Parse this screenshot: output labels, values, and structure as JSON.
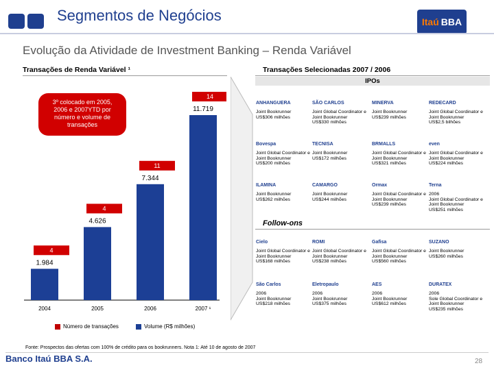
{
  "header": {
    "title": "Segmentos de Negócios",
    "logo_part1": "Itaú",
    "logo_part2": "BBA",
    "subtitle": "Evolução da Atividade de Investment Banking – Renda Variável"
  },
  "left": {
    "section_title": "Transações de Renda Variável ¹",
    "callout": "3º colocado em 2005, 2006 e 2007YTD por número e volume de transações"
  },
  "chart_data": {
    "type": "bar",
    "categories": [
      "2004",
      "2005",
      "2006",
      "2007 ¹"
    ],
    "series": [
      {
        "name": "Número de transações",
        "values": [
          4,
          4,
          11,
          14
        ]
      },
      {
        "name": "Volume (R$ milhões)",
        "values": [
          1984,
          4626,
          7344,
          11719
        ]
      }
    ],
    "volume_labels": [
      "1.984",
      "4.626",
      "7.344",
      "11.719"
    ],
    "count_labels": [
      "4",
      "4",
      "11",
      "14"
    ],
    "legend": [
      "Número de transações",
      "Volume (R$ milhões)"
    ],
    "ylim": [
      0,
      12500
    ]
  },
  "right": {
    "section_title": "Transações Selecionadas 2007 / 2006",
    "ipos_label": "IPOs",
    "followons_label": "Follow-ons",
    "ipos": [
      {
        "logo": "ANHANGUERA",
        "text": "Joint Bookrunner\nUS$306 milhões"
      },
      {
        "logo": "SÃO CARLOS",
        "text": "Joint Global Coordinator e Joint Bookrunner\nUS$330 milhões"
      },
      {
        "logo": "MINERVA",
        "text": "Joint Bookrunner\nUS$239 milhões"
      },
      {
        "logo": "REDECARD",
        "text": "Joint Global Coordinator e Joint Bookrunner\nUS$2,5 bilhões"
      },
      {
        "logo": "Bovespa",
        "text": "Joint Global Coordinator e Joint Bookrunner\nUS$200 milhões"
      },
      {
        "logo": "TECNISA",
        "text": "Joint Bookrunner\nUS$172 milhões"
      },
      {
        "logo": "BRMALLS",
        "text": "Joint Global Coordinator e Joint Bookrunner\nUS$321 milhões"
      },
      {
        "logo": "even",
        "text": "Joint Global Coordinator e Joint Bookrunner\nUS$224 milhões"
      },
      {
        "logo": "ILAMINA",
        "text": "Joint Bookrunner\nUS$262 milhões"
      },
      {
        "logo": "CAMARGO",
        "text": "Joint Bookrunner\nUS$244 milhões"
      },
      {
        "logo": "Ormax",
        "text": "Joint Global Coordinator e Joint Bookrunner\nUS$239 milhões"
      },
      {
        "logo": "Terna",
        "text": "2006\nJoint Global Coordinator e Joint Bookrunner\nUS$251 milhões"
      }
    ],
    "followons": [
      {
        "logo": "Cielo",
        "text": "Joint Global Coordinator e Joint Bookrunner\nUS$168 milhões"
      },
      {
        "logo": "ROMI",
        "text": "Joint Global Coordinator e Joint Bookrunner\nUS$238 milhões"
      },
      {
        "logo": "Gafisa",
        "text": "Joint Global Coordinator e Joint Bookrunner\nUS$560 milhões"
      },
      {
        "logo": "SUZANO",
        "text": "Joint Bookrunner\nUS$260 milhões"
      },
      {
        "logo": "São Carlos",
        "text": "2006\nJoint Bookrunner\nUS$218 milhões"
      },
      {
        "logo": "Eletropaulo",
        "text": "2006\nJoint Bookrunner\nUS$375 milhões"
      },
      {
        "logo": "AES",
        "text": "2006\nJoint Bookrunner\nUS$612 milhões"
      },
      {
        "logo": "DURATEX",
        "text": "2006\nSole Global Coordinator e Joint Bookrunner\nUS$235 milhões"
      }
    ]
  },
  "footer": {
    "note": "Fonte: Prospectos das ofertas com 100% de crédito para os bookrunners. Nota 1: Até 10 de agosto de 2007",
    "bank": "Banco Itaú BBA S.A.",
    "page": "28"
  }
}
